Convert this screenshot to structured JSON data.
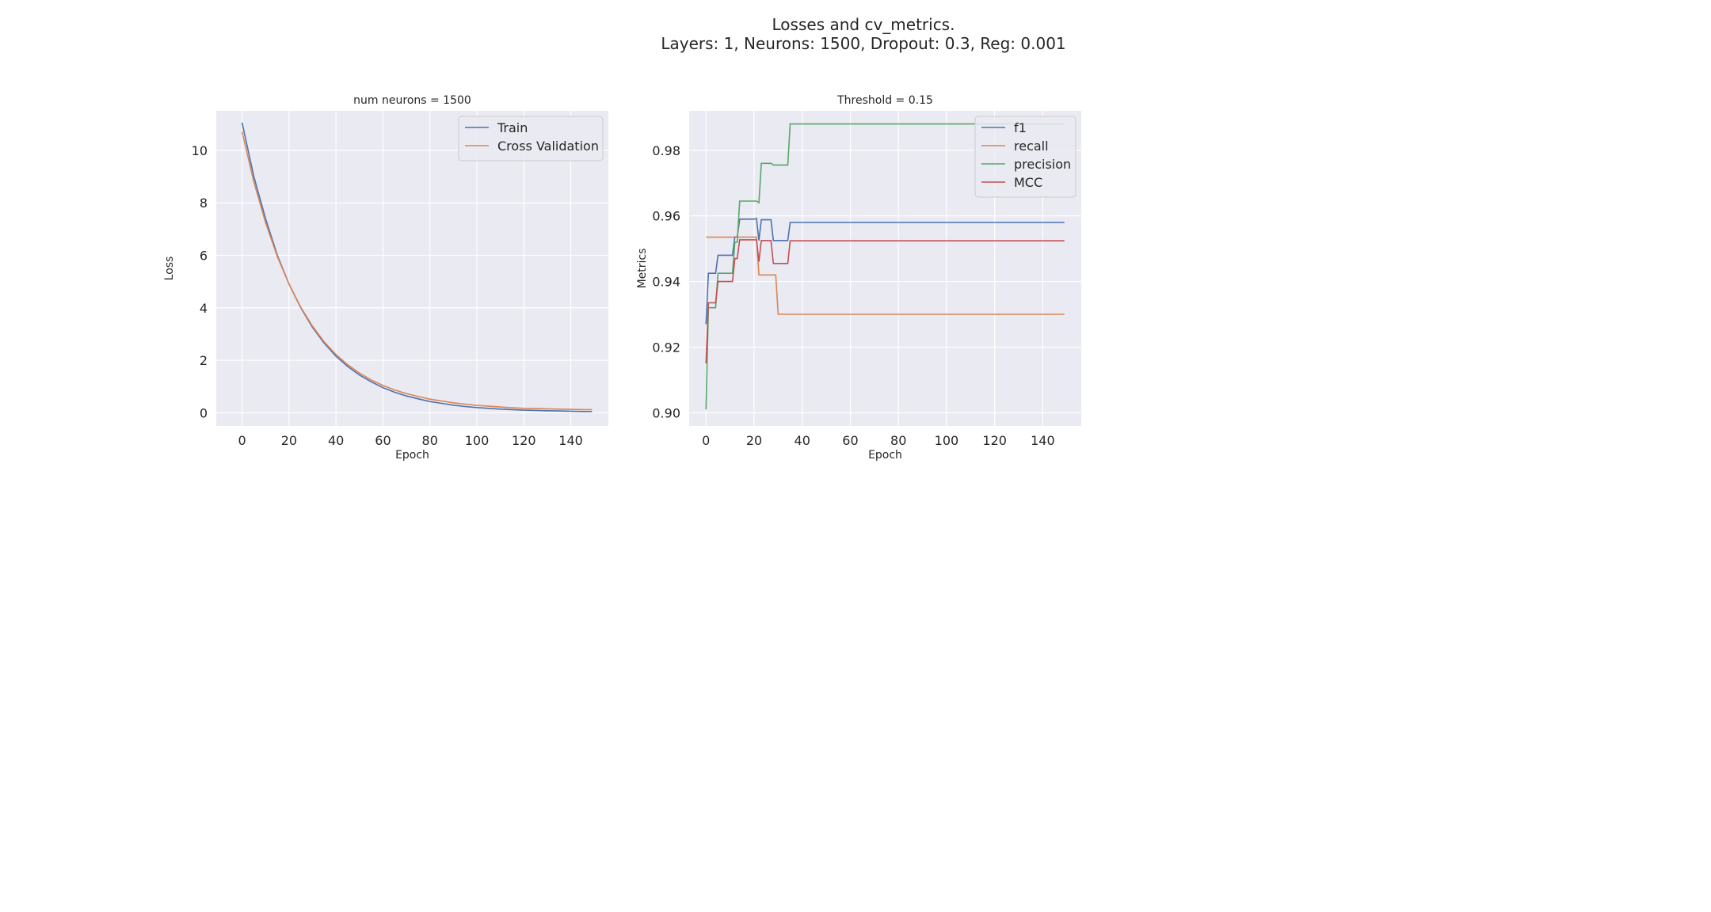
{
  "figure": {
    "title_line1": "Losses and cv_metrics.",
    "title_line2": "Layers: 1, Neurons: 1500, Dropout: 0.3, Reg: 0.001"
  },
  "colors": {
    "background": "#eaeaf2",
    "grid": "#ffffff",
    "blue": "#4c72b0",
    "orange": "#dd8452",
    "green": "#55a868",
    "red": "#c44e52",
    "text": "#262626"
  },
  "chart_data": [
    {
      "type": "line",
      "title": "num neurons = 1500",
      "xlabel": "Epoch",
      "ylabel": "Loss",
      "xlim": [
        -11,
        156
      ],
      "ylim": [
        -0.5,
        11.5
      ],
      "xticks": [
        0,
        20,
        40,
        60,
        80,
        100,
        120,
        140
      ],
      "yticks": [
        0,
        2,
        4,
        6,
        8,
        10
      ],
      "ytick_labels": [
        "0",
        "2",
        "4",
        "6",
        "8",
        "10"
      ],
      "grid": true,
      "legend": "upper right",
      "series": [
        {
          "name": "Train",
          "color": "#4c72b0",
          "x": [
            0,
            5,
            10,
            15,
            20,
            25,
            30,
            35,
            40,
            45,
            50,
            55,
            60,
            65,
            70,
            75,
            80,
            85,
            90,
            95,
            100,
            105,
            110,
            115,
            120,
            125,
            130,
            135,
            140,
            145,
            149
          ],
          "y": [
            11.05,
            9.0,
            7.4,
            6.0,
            4.9,
            4.0,
            3.25,
            2.65,
            2.15,
            1.76,
            1.44,
            1.18,
            0.96,
            0.78,
            0.64,
            0.53,
            0.43,
            0.36,
            0.29,
            0.24,
            0.2,
            0.17,
            0.14,
            0.12,
            0.1,
            0.09,
            0.08,
            0.07,
            0.06,
            0.05,
            0.05
          ]
        },
        {
          "name": "Cross Validation",
          "color": "#dd8452",
          "x": [
            0,
            5,
            10,
            15,
            20,
            25,
            30,
            35,
            40,
            45,
            50,
            55,
            60,
            65,
            70,
            75,
            80,
            85,
            90,
            95,
            100,
            105,
            110,
            115,
            120,
            125,
            130,
            135,
            140,
            145,
            149
          ],
          "y": [
            10.7,
            8.8,
            7.25,
            5.95,
            4.9,
            4.02,
            3.3,
            2.7,
            2.22,
            1.83,
            1.51,
            1.25,
            1.04,
            0.87,
            0.73,
            0.62,
            0.52,
            0.45,
            0.38,
            0.33,
            0.28,
            0.25,
            0.22,
            0.19,
            0.17,
            0.16,
            0.15,
            0.14,
            0.13,
            0.12,
            0.12
          ]
        }
      ]
    },
    {
      "type": "line",
      "title": "Threshold = 0.15",
      "xlabel": "Epoch",
      "ylabel": "Metrics",
      "xlim": [
        -7,
        156
      ],
      "ylim": [
        0.896,
        0.992
      ],
      "xticks": [
        0,
        20,
        40,
        60,
        80,
        100,
        120,
        140
      ],
      "yticks": [
        0.9,
        0.92,
        0.94,
        0.96,
        0.98
      ],
      "ytick_labels": [
        "0.90",
        "0.92",
        "0.94",
        "0.96",
        "0.98"
      ],
      "grid": true,
      "legend": "upper right",
      "series": [
        {
          "name": "f1",
          "color": "#4c72b0",
          "x": [
            0,
            1,
            4,
            5,
            11,
            12,
            13,
            14,
            20,
            21,
            22,
            23,
            27,
            28,
            34,
            35,
            149
          ],
          "y": [
            0.927,
            0.9425,
            0.9425,
            0.948,
            0.948,
            0.9536,
            0.9536,
            0.959,
            0.959,
            0.9592,
            0.9525,
            0.9588,
            0.9588,
            0.9525,
            0.9525,
            0.958,
            0.958
          ]
        },
        {
          "name": "recall",
          "color": "#dd8452",
          "x": [
            0,
            20,
            21,
            22,
            28,
            29,
            30,
            149
          ],
          "y": [
            0.9535,
            0.9535,
            0.9535,
            0.942,
            0.942,
            0.942,
            0.93,
            0.93
          ]
        },
        {
          "name": "precision",
          "color": "#55a868",
          "x": [
            0,
            1,
            4,
            5,
            11,
            12,
            13,
            14,
            20,
            21,
            22,
            23,
            27,
            28,
            34,
            35,
            149
          ],
          "y": [
            0.901,
            0.932,
            0.932,
            0.9425,
            0.9425,
            0.952,
            0.952,
            0.9645,
            0.9645,
            0.9645,
            0.964,
            0.976,
            0.976,
            0.9755,
            0.9755,
            0.988,
            0.988
          ]
        },
        {
          "name": "MCC",
          "color": "#c44e52",
          "x": [
            0,
            1,
            4,
            5,
            11,
            12,
            13,
            14,
            20,
            21,
            22,
            23,
            27,
            28,
            34,
            35,
            149
          ],
          "y": [
            0.915,
            0.9335,
            0.9335,
            0.94,
            0.94,
            0.947,
            0.947,
            0.9527,
            0.9527,
            0.9527,
            0.946,
            0.9525,
            0.9525,
            0.9455,
            0.9455,
            0.9524,
            0.9524
          ]
        }
      ]
    }
  ]
}
